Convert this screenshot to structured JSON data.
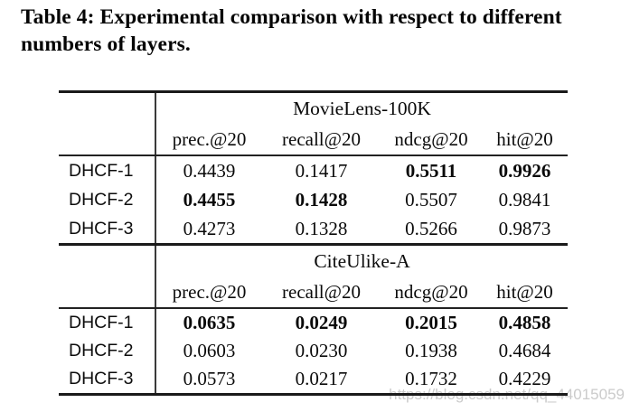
{
  "caption": "Table 4: Experimental comparison with respect to different numbers of layers.",
  "watermark": "https://blog.csdn.net/qq_44015059",
  "table": {
    "col_headers": [
      "prec.@20",
      "recall@20",
      "ndcg@20",
      "hit@20"
    ],
    "sections": [
      {
        "dataset": "MovieLens-100K",
        "rows": [
          {
            "label": "DHCF-1",
            "values": [
              "0.4439",
              "0.1417",
              "0.5511",
              "0.9926"
            ],
            "bold": [
              false,
              false,
              true,
              true
            ]
          },
          {
            "label": "DHCF-2",
            "values": [
              "0.4455",
              "0.1428",
              "0.5507",
              "0.9841"
            ],
            "bold": [
              true,
              true,
              false,
              false
            ]
          },
          {
            "label": "DHCF-3",
            "values": [
              "0.4273",
              "0.1328",
              "0.5266",
              "0.9873"
            ],
            "bold": [
              false,
              false,
              false,
              false
            ]
          }
        ]
      },
      {
        "dataset": "CiteUlike-A",
        "rows": [
          {
            "label": "DHCF-1",
            "values": [
              "0.0635",
              "0.0249",
              "0.2015",
              "0.4858"
            ],
            "bold": [
              true,
              true,
              true,
              true
            ]
          },
          {
            "label": "DHCF-2",
            "values": [
              "0.0603",
              "0.0230",
              "0.1938",
              "0.4684"
            ],
            "bold": [
              false,
              false,
              false,
              false
            ]
          },
          {
            "label": "DHCF-3",
            "values": [
              "0.0573",
              "0.0217",
              "0.1732",
              "0.4229"
            ],
            "bold": [
              false,
              false,
              false,
              false
            ]
          }
        ]
      }
    ]
  }
}
